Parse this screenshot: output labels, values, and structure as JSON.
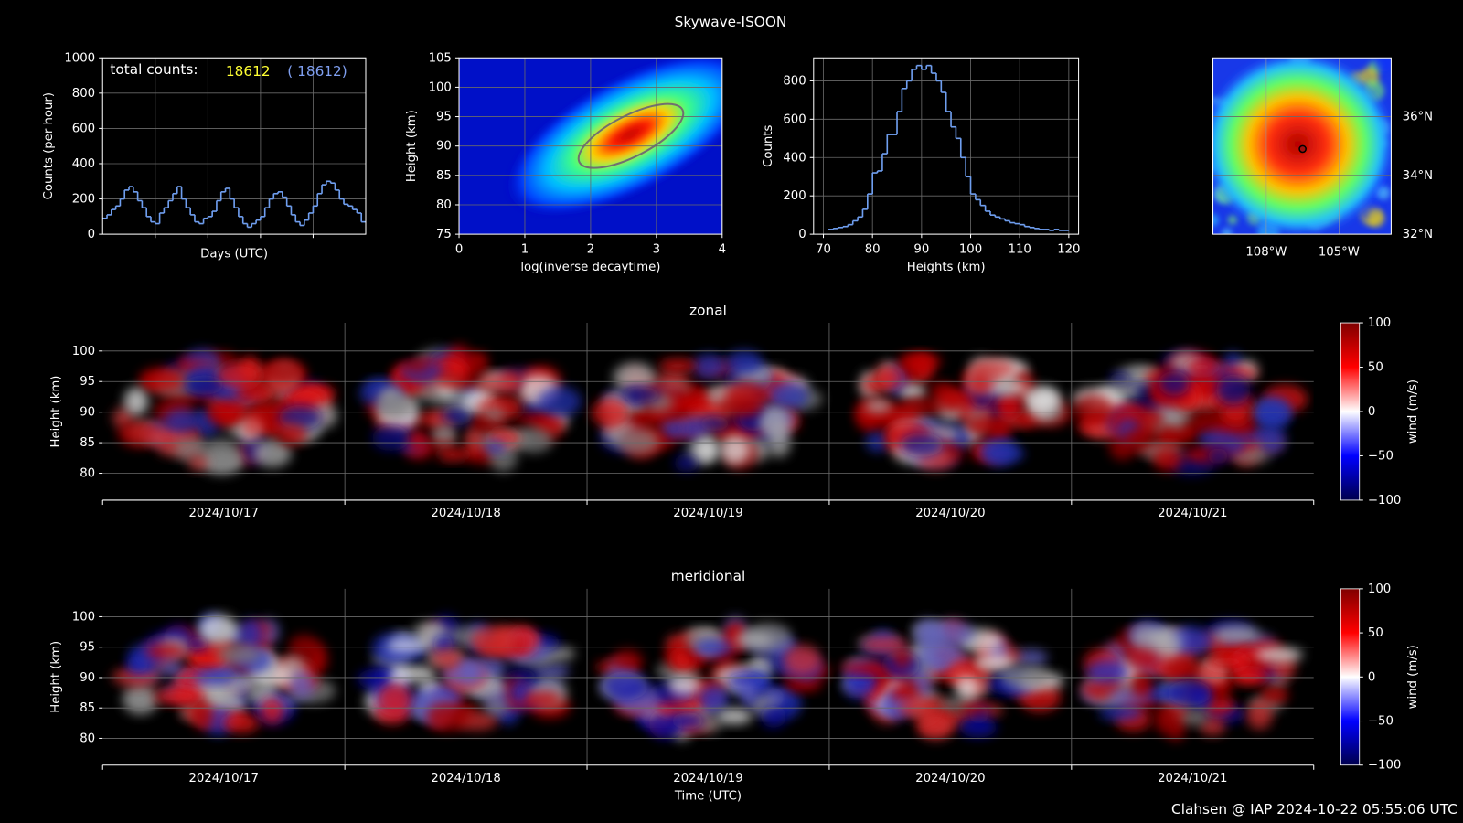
{
  "title": "Skywave-ISOON",
  "footer": "Clahsen @ IAP 2024-10-22 05:55:06 UTC",
  "chart_data": [
    {
      "type": "step",
      "ylabel": "Counts (per hour)",
      "xlabel": "Days (UTC)",
      "annotation": "total counts:",
      "counts": [
        18612,
        {
          "value": 18612,
          "label": "( 18612)"
        }
      ],
      "count_colors": [
        "#ffff33",
        "#7f9fef"
      ],
      "color": "#6f9eef",
      "values": [
        90,
        110,
        140,
        160,
        200,
        250,
        270,
        240,
        190,
        150,
        100,
        70,
        60,
        120,
        150,
        190,
        230,
        270,
        200,
        150,
        110,
        70,
        60,
        90,
        100,
        130,
        190,
        240,
        260,
        200,
        150,
        100,
        60,
        40,
        60,
        80,
        100,
        150,
        200,
        230,
        240,
        210,
        160,
        110,
        70,
        50,
        80,
        120,
        160,
        230,
        280,
        300,
        290,
        250,
        200,
        170,
        160,
        140,
        120,
        70
      ],
      "ylim": [
        0,
        1000
      ],
      "yticks": [
        0,
        200,
        400,
        600,
        800,
        1000
      ],
      "grid": true
    },
    {
      "type": "density",
      "xlabel": "log(inverse decaytime)",
      "ylabel": "Height (km)",
      "xlim": [
        0,
        4
      ],
      "xticks": [
        0,
        1,
        2,
        3,
        4
      ],
      "ylim": [
        75,
        105
      ],
      "yticks": [
        75,
        80,
        85,
        90,
        95,
        100,
        105
      ],
      "peak": {
        "x": 2.6,
        "y": 92
      },
      "grid": true
    },
    {
      "type": "histogram",
      "xlabel": "Heights (km)",
      "ylabel": "Counts",
      "color": "#6f9eef",
      "bins": [
        71,
        72,
        73,
        74,
        75,
        76,
        77,
        78,
        79,
        80,
        81,
        82,
        83,
        84,
        85,
        86,
        87,
        88,
        89,
        90,
        91,
        92,
        93,
        94,
        95,
        96,
        97,
        98,
        99,
        100,
        101,
        102,
        103,
        104,
        105,
        106,
        107,
        108,
        109,
        110,
        111,
        112,
        113,
        114,
        115,
        116,
        117,
        118,
        119,
        120
      ],
      "counts": [
        25,
        30,
        35,
        40,
        50,
        70,
        90,
        130,
        210,
        320,
        330,
        420,
        520,
        520,
        640,
        760,
        800,
        860,
        880,
        860,
        880,
        840,
        800,
        740,
        640,
        560,
        500,
        400,
        300,
        210,
        180,
        150,
        120,
        100,
        90,
        80,
        70,
        60,
        55,
        50,
        40,
        35,
        30,
        25,
        25,
        20,
        25,
        20,
        20
      ],
      "xlim": [
        68,
        122
      ],
      "xticks": [
        70,
        80,
        90,
        100,
        110,
        120
      ],
      "ylim": [
        0,
        920
      ],
      "yticks": [
        0,
        200,
        400,
        600,
        800
      ],
      "grid": true
    },
    {
      "type": "map",
      "xlim": [
        -110.2,
        -102.85
      ],
      "xticks": [
        {
          "value": -108,
          "label": "108°W"
        },
        {
          "value": -105,
          "label": "105°W"
        }
      ],
      "ylim": [
        32,
        38
      ],
      "yticks": [
        {
          "value": 32,
          "label": "32°N"
        },
        {
          "value": 34,
          "label": "34°N"
        },
        {
          "value": 36,
          "label": "36°N"
        }
      ],
      "marker": {
        "x": -106.5,
        "y": 34.9
      },
      "grid": true
    },
    {
      "type": "wind",
      "title": "zonal",
      "ylabel": "Height (km)",
      "categories": [
        "2024/10/17",
        "2024/10/18",
        "2024/10/19",
        "2024/10/20",
        "2024/10/21"
      ],
      "ylim": [
        75.6,
        104.6
      ],
      "yticks": [
        80,
        85,
        90,
        95,
        100
      ],
      "clim": [
        -100,
        100
      ],
      "cticks": [
        {
          "value": -100,
          "label": "−100"
        },
        {
          "value": -50,
          "label": "−50"
        },
        0,
        50,
        100
      ],
      "clabel": "wind (m/s)",
      "grid": true
    },
    {
      "type": "wind",
      "title": "meridional",
      "ylabel": "Height (km)",
      "xlabel": "Time (UTC)",
      "categories": [
        "2024/10/17",
        "2024/10/18",
        "2024/10/19",
        "2024/10/20",
        "2024/10/21"
      ],
      "ylim": [
        75.6,
        104.6
      ],
      "yticks": [
        80,
        85,
        90,
        95,
        100
      ],
      "clim": [
        -100,
        100
      ],
      "cticks": [
        {
          "value": -100,
          "label": "−100"
        },
        {
          "value": -50,
          "label": "−50"
        },
        0,
        50,
        100
      ],
      "clabel": "wind (m/s)",
      "grid": true
    }
  ]
}
